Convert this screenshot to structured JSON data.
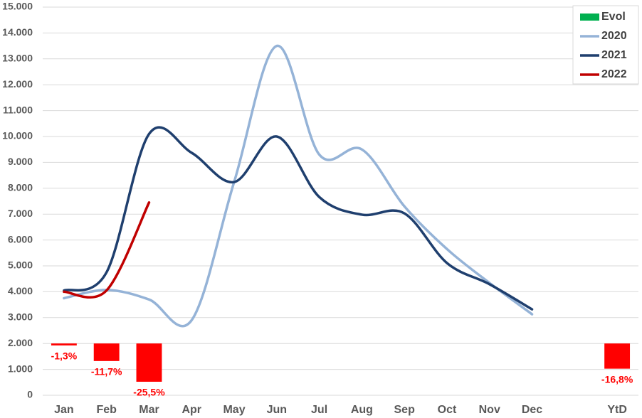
{
  "chart_data": {
    "type": "line",
    "categories": [
      "Jan",
      "Feb",
      "Mar",
      "Apr",
      "May",
      "Jun",
      "Jul",
      "Aug",
      "Sep",
      "Oct",
      "Nov",
      "Dec",
      null,
      "YtD"
    ],
    "series": [
      {
        "name": "Evol",
        "type": "bar",
        "axis": "y2",
        "color": "#00b050",
        "bar_color": "#ff0000",
        "values": [
          -1.3,
          -11.7,
          -25.5,
          null,
          null,
          null,
          null,
          null,
          null,
          null,
          null,
          null,
          null,
          -16.8
        ],
        "value_labels": [
          "-1,3%",
          "-11,7%",
          "-25,5%",
          null,
          null,
          null,
          null,
          null,
          null,
          null,
          null,
          null,
          null,
          "-16,8%"
        ]
      },
      {
        "name": "2020",
        "color": "#95b3d7",
        "values": [
          3750,
          4070,
          3700,
          2900,
          8250,
          13500,
          9300,
          9500,
          7300,
          5650,
          4340,
          3130,
          null,
          null
        ]
      },
      {
        "name": "2021",
        "color": "#1f3f6e",
        "values": [
          4050,
          4750,
          10100,
          9370,
          8240,
          10000,
          7660,
          6980,
          7030,
          5110,
          4290,
          3320,
          null,
          null
        ]
      },
      {
        "name": "2022",
        "color": "#c00000",
        "values": [
          4000,
          4050,
          7450,
          null,
          null,
          null,
          null,
          null,
          null,
          null,
          null,
          null,
          null,
          null
        ]
      }
    ],
    "ylim": [
      0,
      15000
    ],
    "yticks": [
      0,
      {
        "value": 1000,
        "label": "1.000"
      },
      {
        "value": 2000,
        "label": "2.000"
      },
      {
        "value": 3000,
        "label": "3.000"
      },
      {
        "value": 4000,
        "label": "4.000"
      },
      {
        "value": 5000,
        "label": "5.000"
      },
      {
        "value": 6000,
        "label": "6.000"
      },
      {
        "value": 7000,
        "label": "7.000"
      },
      {
        "value": 8000,
        "label": "8.000"
      },
      {
        "value": 9000,
        "label": "9.000"
      },
      {
        "value": 10000,
        "label": "10.000"
      },
      {
        "value": 11000,
        "label": "11.000"
      },
      {
        "value": 12000,
        "label": "12.000"
      },
      {
        "value": 13000,
        "label": "13.000"
      },
      {
        "value": 14000,
        "label": "14.000"
      },
      {
        "value": 15000,
        "label": "15.000"
      }
    ],
    "y2lim": [
      -34.5,
      224.1
    ],
    "grid": true,
    "legend": "top-right"
  }
}
